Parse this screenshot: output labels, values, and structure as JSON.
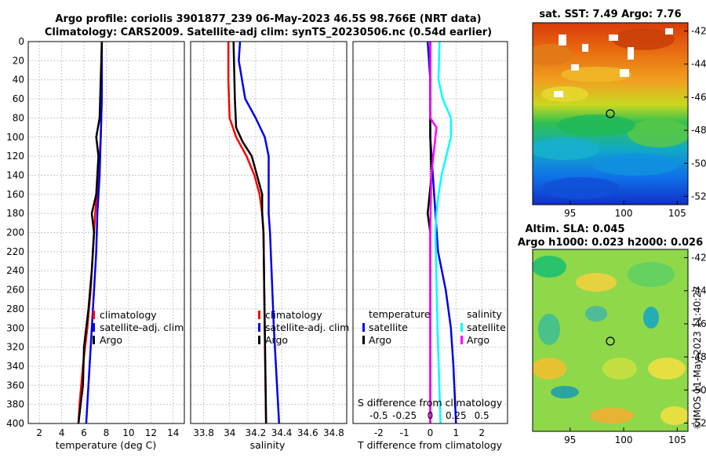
{
  "title": {
    "line1": "Argo profile: coriolis 3901877_239 06-May-2023 46.5S 98.766E (NRT data)",
    "line2": "Climatology: CARS2009. Satellite-adj clim: synTS_20230506.nc (0.54d earlier)"
  },
  "sst_map": {
    "title": "sat. SST: 7.49 Argo: 7.76",
    "yticks": [
      "-42",
      "-44",
      "-46",
      "-48",
      "-50",
      "-52"
    ],
    "xticks": [
      "95",
      "100",
      "105"
    ]
  },
  "sla_map": {
    "title1": "Altim. SLA: 0.045",
    "title2": "Argo h1000: 0.023 h2000: 0.026",
    "yticks": [
      "-42",
      "-44",
      "-46",
      "-48",
      "-50",
      "-52"
    ],
    "xticks": [
      "95",
      "100",
      "105"
    ]
  },
  "stamp": "©IMOS 11-May-2023 11:40:27",
  "colors": {
    "climatology": "#ff0000",
    "satellite": "#0000ee",
    "argo": "#000000",
    "salinity_sat": "#00ffff",
    "salinity_argo": "#ff00ff"
  },
  "chart_data": [
    {
      "type": "line",
      "name": "temperature",
      "xlabel": "temperature (deg C)",
      "xlim": [
        1,
        15
      ],
      "xticks": [
        "2",
        "4",
        "6",
        "8",
        "10",
        "12",
        "14"
      ],
      "ylim": [
        0,
        400
      ],
      "yticks": [
        "0",
        "20",
        "40",
        "60",
        "80",
        "100",
        "120",
        "140",
        "160",
        "180",
        "200",
        "220",
        "240",
        "260",
        "280",
        "300",
        "320",
        "340",
        "360",
        "380",
        "400"
      ],
      "grid": true,
      "legend": [
        "climatology",
        "satellite-adj. clim",
        "Argo"
      ],
      "legend_position": "lower-right",
      "series": [
        {
          "name": "climatology",
          "depth": [
            0,
            60,
            100,
            140,
            180,
            220,
            260,
            300,
            340,
            380,
            400
          ],
          "values": [
            7.6,
            7.6,
            7.5,
            7.3,
            7.0,
            6.8,
            6.6,
            6.3,
            5.9,
            5.6,
            5.5
          ]
        },
        {
          "name": "satellite-adj. clim",
          "depth": [
            0,
            60,
            100,
            140,
            180,
            220,
            260,
            300,
            340,
            380,
            400
          ],
          "values": [
            7.6,
            7.6,
            7.5,
            7.4,
            7.2,
            7.1,
            6.9,
            6.7,
            6.5,
            6.3,
            6.2
          ]
        },
        {
          "name": "Argo",
          "depth": [
            0,
            40,
            80,
            100,
            120,
            160,
            180,
            200,
            240,
            280,
            320,
            360,
            380,
            400
          ],
          "values": [
            7.6,
            7.5,
            7.4,
            7.1,
            7.3,
            7.1,
            6.7,
            6.9,
            6.7,
            6.4,
            6.0,
            5.9,
            5.7,
            5.5
          ]
        }
      ]
    },
    {
      "type": "line",
      "name": "salinity",
      "xlabel": "salinity",
      "xlim": [
        33.7,
        34.9
      ],
      "xticks": [
        "33.8",
        "34",
        "34.2",
        "34.4",
        "34.6",
        "34.8"
      ],
      "ylim": [
        0,
        400
      ],
      "grid": true,
      "legend": [
        "climatology",
        "satellite-adj. clim",
        "Argo"
      ],
      "legend_position": "lower-right",
      "series": [
        {
          "name": "climatology",
          "depth": [
            0,
            40,
            80,
            100,
            120,
            140,
            160,
            180,
            200,
            300,
            400
          ],
          "values": [
            33.99,
            33.99,
            34.0,
            34.05,
            34.13,
            34.19,
            34.23,
            34.25,
            34.26,
            34.27,
            34.28
          ]
        },
        {
          "name": "satellite-adj. clim",
          "depth": [
            0,
            20,
            60,
            80,
            100,
            120,
            140,
            180,
            200,
            300,
            400
          ],
          "values": [
            34.08,
            34.07,
            34.12,
            34.2,
            34.27,
            34.3,
            34.3,
            34.3,
            34.31,
            34.34,
            34.38
          ]
        },
        {
          "name": "Argo",
          "depth": [
            0,
            60,
            90,
            105,
            120,
            140,
            160,
            180,
            200,
            300,
            400
          ],
          "values": [
            34.03,
            34.04,
            34.05,
            34.1,
            34.17,
            34.21,
            34.25,
            34.25,
            34.26,
            34.27,
            34.28
          ]
        }
      ]
    },
    {
      "type": "line",
      "name": "difference",
      "xlabel": "T difference from climatology",
      "xlabel2": "S difference from climatology",
      "xlim": [
        -3,
        3
      ],
      "xticks": [
        "-2",
        "-1",
        "0",
        "1",
        "2"
      ],
      "xticks2": [
        "-0.5",
        "-0.25",
        "0",
        "0.25",
        "0.5"
      ],
      "ylim": [
        0,
        400
      ],
      "grid": true,
      "legend_t": {
        "header": "temperature",
        "items": [
          "satellite",
          "Argo"
        ]
      },
      "legend_s": {
        "header": "salinity",
        "items": [
          "satellite",
          "Argo"
        ]
      },
      "series": [
        {
          "name": "temperature satellite",
          "depth": [
            0,
            40,
            80,
            100,
            140,
            180,
            220,
            260,
            300,
            340,
            400
          ],
          "values": [
            -0.1,
            0.0,
            0.0,
            0.0,
            0.1,
            0.2,
            0.3,
            0.6,
            0.8,
            0.9,
            1.0
          ]
        },
        {
          "name": "temperature Argo",
          "depth": [
            0,
            80,
            100,
            140,
            180,
            200,
            240,
            300,
            360,
            400
          ],
          "values": [
            0.0,
            0.0,
            0.0,
            0.05,
            -0.1,
            0.0,
            0.0,
            0.0,
            0.0,
            0.0
          ]
        },
        {
          "name": "salinity satellite",
          "depth": [
            0,
            40,
            60,
            80,
            100,
            140,
            160,
            180,
            200,
            300,
            400
          ],
          "values": [
            0.09,
            0.08,
            0.12,
            0.2,
            0.2,
            0.11,
            0.08,
            0.06,
            0.05,
            0.07,
            0.1
          ]
        },
        {
          "name": "salinity Argo",
          "depth": [
            0,
            80,
            90,
            100,
            120,
            140,
            200,
            300,
            400
          ],
          "values": [
            0.0,
            0.0,
            0.06,
            0.05,
            0.03,
            0.01,
            0.0,
            0.0,
            0.0
          ]
        }
      ]
    }
  ]
}
